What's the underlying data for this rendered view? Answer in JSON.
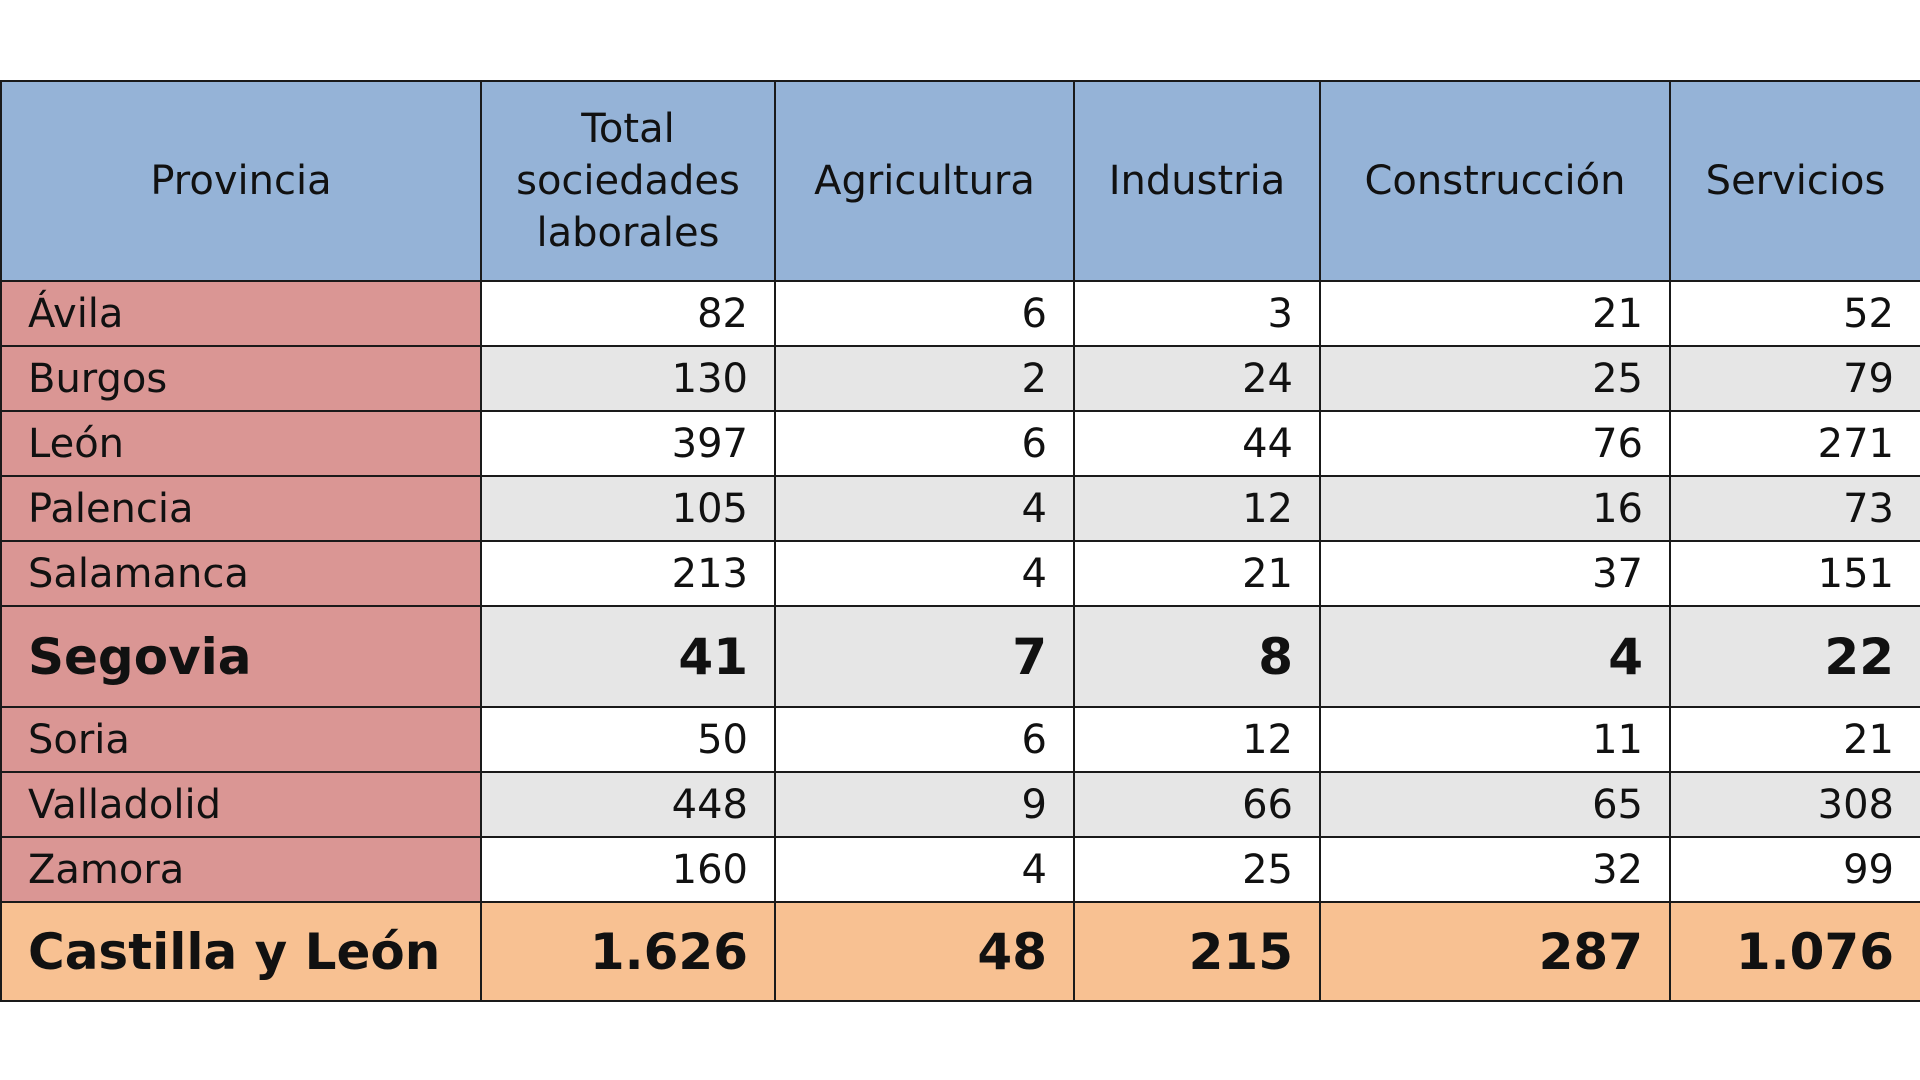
{
  "headers": [
    "Provincia",
    "Total sociedades laborales",
    "Agricultura",
    "Industria",
    "Construcción",
    "Servicios"
  ],
  "rows": [
    {
      "provincia": "Ávila",
      "values": [
        "82",
        "6",
        "3",
        "21",
        "52"
      ]
    },
    {
      "provincia": "Burgos",
      "values": [
        "130",
        "2",
        "24",
        "25",
        "79"
      ]
    },
    {
      "provincia": "León",
      "values": [
        "397",
        "6",
        "44",
        "76",
        "271"
      ]
    },
    {
      "provincia": "Palencia",
      "values": [
        "105",
        "4",
        "12",
        "16",
        "73"
      ]
    },
    {
      "provincia": "Salamanca",
      "values": [
        "213",
        "4",
        "21",
        "37",
        "151"
      ]
    },
    {
      "provincia": "Segovia",
      "values": [
        "41",
        "7",
        "8",
        "4",
        "22"
      ],
      "highlighted": true
    },
    {
      "provincia": "Soria",
      "values": [
        "50",
        "6",
        "12",
        "11",
        "21"
      ]
    },
    {
      "provincia": "Valladolid",
      "values": [
        "448",
        "9",
        "66",
        "65",
        "308"
      ]
    },
    {
      "provincia": "Zamora",
      "values": [
        "160",
        "4",
        "25",
        "32",
        "99"
      ]
    }
  ],
  "total": {
    "provincia": "Castilla y León",
    "values": [
      "1.626",
      "48",
      "215",
      "287",
      "1.076"
    ]
  },
  "colors": {
    "header": "#95b3d7",
    "province": "#da9694",
    "alt_row": "#e6e6e6",
    "total": "#f8c192"
  }
}
